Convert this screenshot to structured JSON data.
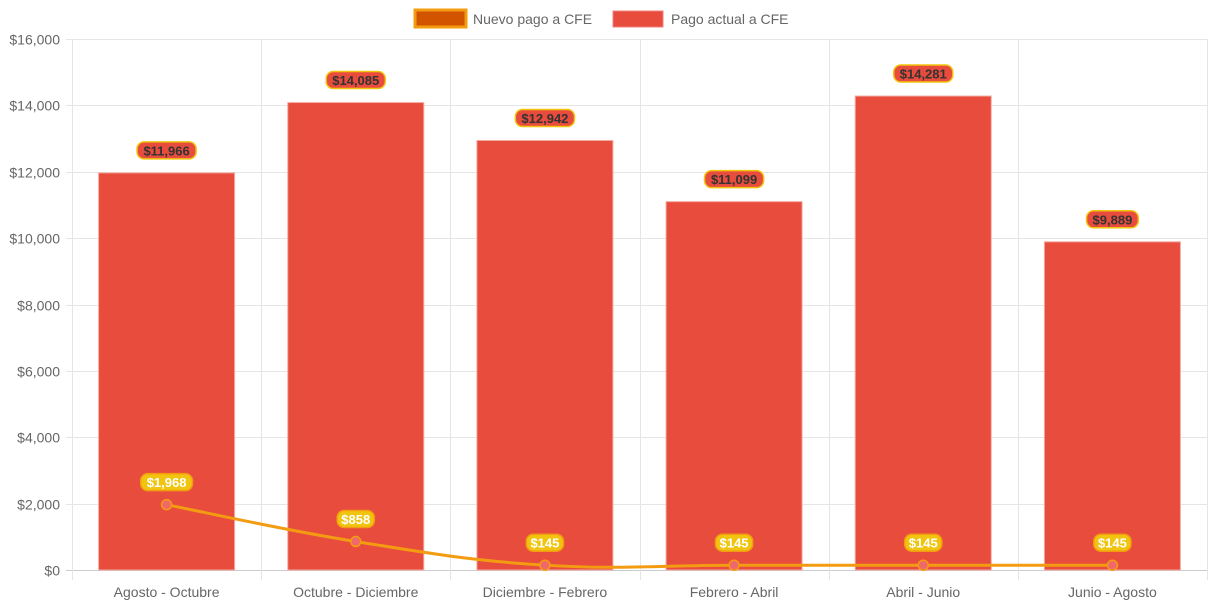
{
  "chart_data": {
    "type": "bar",
    "categories": [
      "Agosto - Octubre",
      "Octubre - Diciembre",
      "Diciembre - Febrero",
      "Febrero - Abril",
      "Abril - Junio",
      "Junio - Agosto"
    ],
    "series": [
      {
        "name": "Nuevo pago a CFE",
        "type": "line",
        "values": [
          1968,
          858,
          145,
          145,
          145,
          145
        ],
        "labels": [
          "$1,968",
          "$858",
          "$145",
          "$145",
          "$145",
          "$145"
        ],
        "color": "#f39c12",
        "fill": "#d35400",
        "point_color": "#f1686a"
      },
      {
        "name": "Pago actual a CFE",
        "type": "bar",
        "values": [
          11966,
          14085,
          12942,
          11099,
          14281,
          9889
        ],
        "labels": [
          "$11,966",
          "$14,085",
          "$12,942",
          "$11,099",
          "$14,281",
          "$9,889"
        ],
        "color": "#e74c3c"
      }
    ],
    "yticks": [
      "$0",
      "$2,000",
      "$4,000",
      "$6,000",
      "$8,000",
      "$10,000",
      "$12,000",
      "$14,000",
      "$16,000"
    ],
    "ylim": [
      0,
      16000
    ],
    "grid": true,
    "legend": "top"
  }
}
